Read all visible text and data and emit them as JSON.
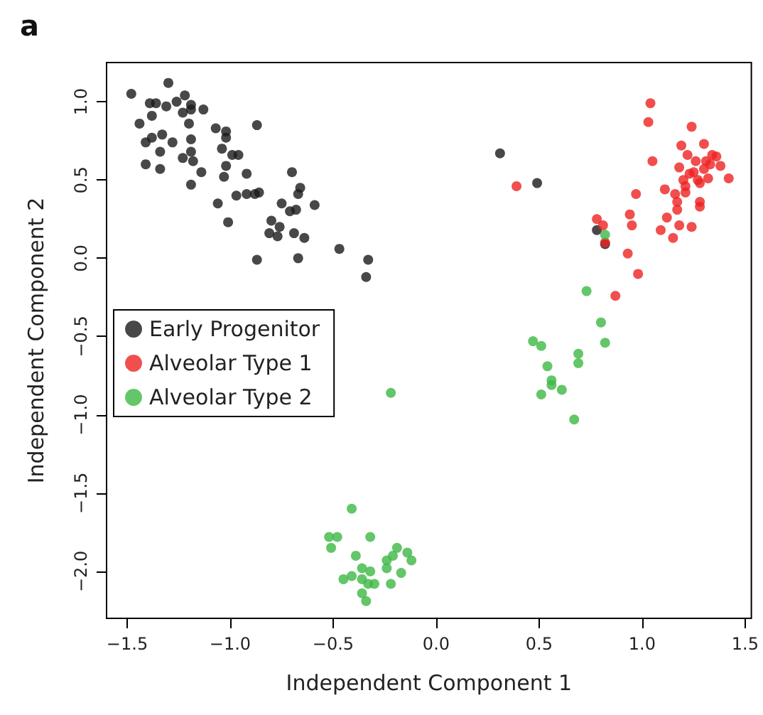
{
  "chart_data": {
    "type": "scatter",
    "xlabel": "Independent Component 1",
    "ylabel": "Independent Component 2",
    "annotations": [
      "a"
    ],
    "xlim": [
      -1.6,
      1.53
    ],
    "ylim": [
      -2.3,
      1.25
    ],
    "xticks": [
      {
        "value": -1.5,
        "label": "−1.5"
      },
      {
        "value": -1,
        "label": "−1.0"
      },
      {
        "value": -0.5,
        "label": "−0.5"
      },
      {
        "value": 0,
        "label": "0.0"
      },
      {
        "value": 0.5,
        "label": "0.5"
      },
      {
        "value": 1,
        "label": "1.0"
      },
      {
        "value": 1.5,
        "label": "1.5"
      }
    ],
    "yticks": [
      {
        "value": -2,
        "label": "−2.0"
      },
      {
        "value": -1.5,
        "label": "−1.5"
      },
      {
        "value": -1,
        "label": "−1.0"
      },
      {
        "value": -0.5,
        "label": "−0.5"
      },
      {
        "value": 0,
        "label": "0.0"
      },
      {
        "value": 0.5,
        "label": "0.5"
      },
      {
        "value": 1,
        "label": "1.0"
      }
    ],
    "grid": false,
    "legend": "left",
    "marker": "circle",
    "series": [
      {
        "name": "Early Progenitor",
        "color": "#1a1a1a",
        "x": [
          -1.3,
          -1.48,
          -1.39,
          -1.36,
          -1.31,
          -1.26,
          -1.22,
          -1.19,
          -1.13,
          -1.23,
          -1.19,
          -1.38,
          -1.44,
          -1.2,
          -1.07,
          -1.02,
          -1.02,
          -0.87,
          -1.41,
          -1.38,
          -1.33,
          -1.28,
          -1.19,
          -1.34,
          -1.04,
          -0.99,
          -0.96,
          -1.19,
          -1.23,
          -1.18,
          -1.41,
          -1.34,
          -1.14,
          -1.02,
          -0.92,
          -1.03,
          -1.19,
          -0.7,
          -0.66,
          -0.67,
          -0.97,
          -0.92,
          -0.88,
          -0.86,
          -1.06,
          -0.75,
          -0.71,
          -0.68,
          -0.59,
          -1.01,
          -0.8,
          -0.76,
          -0.81,
          -0.77,
          -0.69,
          -0.64,
          -0.47,
          -0.33,
          -0.87,
          -0.67,
          -0.34,
          0.31,
          0.49,
          0.78,
          0.82
        ],
        "values": [
          1.12,
          1.05,
          0.99,
          0.99,
          0.97,
          1.0,
          1.04,
          0.98,
          0.95,
          0.93,
          0.95,
          0.91,
          0.86,
          0.86,
          0.83,
          0.81,
          0.77,
          0.85,
          0.74,
          0.77,
          0.79,
          0.74,
          0.76,
          0.68,
          0.7,
          0.66,
          0.66,
          0.68,
          0.64,
          0.62,
          0.6,
          0.57,
          0.55,
          0.59,
          0.54,
          0.52,
          0.47,
          0.55,
          0.45,
          0.41,
          0.4,
          0.41,
          0.41,
          0.42,
          0.35,
          0.35,
          0.3,
          0.31,
          0.34,
          0.23,
          0.24,
          0.2,
          0.16,
          0.14,
          0.16,
          0.13,
          0.06,
          -0.01,
          -0.01,
          0.0,
          -0.12,
          0.67,
          0.48,
          0.18,
          0.09
        ]
      },
      {
        "name": "Alveolar Type 1",
        "color": "#ee2222",
        "x": [
          1.04,
          1.03,
          1.24,
          1.19,
          1.3,
          1.22,
          1.34,
          1.36,
          1.05,
          1.18,
          1.26,
          1.31,
          1.38,
          1.23,
          1.32,
          1.42,
          1.28,
          1.21,
          0.39,
          1.11,
          1.16,
          0.97,
          1.21,
          1.17,
          1.28,
          1.28,
          1.17,
          0.94,
          1.12,
          0.78,
          0.81,
          0.95,
          1.18,
          1.24,
          1.09,
          1.15,
          0.82,
          0.93,
          0.98,
          0.87,
          1.25,
          1.3,
          1.27,
          1.2,
          1.33
        ],
        "values": [
          0.99,
          0.87,
          0.84,
          0.72,
          0.73,
          0.66,
          0.66,
          0.65,
          0.62,
          0.58,
          0.62,
          0.62,
          0.59,
          0.54,
          0.51,
          0.51,
          0.48,
          0.46,
          0.46,
          0.44,
          0.41,
          0.41,
          0.42,
          0.36,
          0.36,
          0.33,
          0.31,
          0.28,
          0.26,
          0.25,
          0.21,
          0.21,
          0.21,
          0.2,
          0.18,
          0.13,
          0.1,
          0.03,
          -0.1,
          -0.24,
          0.55,
          0.57,
          0.5,
          0.5,
          0.6
        ]
      },
      {
        "name": "Alveolar Type 2",
        "color": "#3cb844",
        "x": [
          0.82,
          0.73,
          0.8,
          0.47,
          0.51,
          0.82,
          0.69,
          0.69,
          0.54,
          0.56,
          0.56,
          0.61,
          0.51,
          0.67,
          -0.22,
          -0.41,
          -0.52,
          -0.48,
          -0.51,
          -0.32,
          -0.39,
          -0.19,
          -0.14,
          -0.12,
          -0.21,
          -0.24,
          -0.24,
          -0.17,
          -0.45,
          -0.41,
          -0.36,
          -0.32,
          -0.36,
          -0.33,
          -0.3,
          -0.22,
          -0.36,
          -0.34
        ],
        "values": [
          0.15,
          -0.21,
          -0.41,
          -0.53,
          -0.56,
          -0.54,
          -0.61,
          -0.67,
          -0.69,
          -0.78,
          -0.81,
          -0.84,
          -0.87,
          -1.03,
          -0.86,
          -1.6,
          -1.78,
          -1.78,
          -1.85,
          -1.78,
          -1.9,
          -1.85,
          -1.88,
          -1.93,
          -1.9,
          -1.93,
          -1.98,
          -2.01,
          -2.05,
          -2.03,
          -1.98,
          -2.0,
          -2.05,
          -2.08,
          -2.08,
          -2.08,
          -2.14,
          -2.19
        ]
      }
    ]
  }
}
